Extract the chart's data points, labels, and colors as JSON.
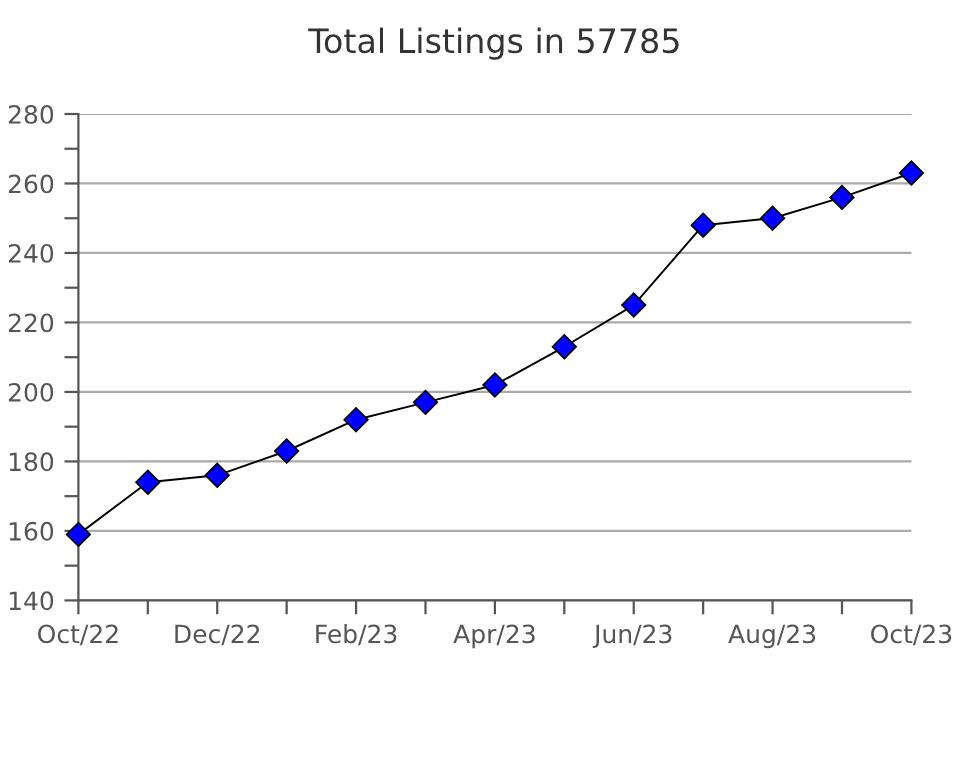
{
  "chart_data": {
    "type": "line",
    "title": "Total Listings in 57785",
    "categories": [
      "Oct/22",
      null,
      "Dec/22",
      null,
      "Feb/23",
      null,
      "Apr/23",
      null,
      "Jun/23",
      null,
      "Aug/23",
      null,
      "Oct/23"
    ],
    "series": [
      {
        "color": "#0000ff",
        "values": [
          159,
          174,
          176,
          183,
          192,
          197,
          202,
          213,
          225,
          248,
          250,
          256,
          263
        ]
      }
    ],
    "ylim": [
      140,
      280
    ],
    "yticks": [
      140,
      {
        "value": 150,
        "label": null
      },
      160,
      {
        "value": 170,
        "label": null
      },
      180,
      {
        "value": 190,
        "label": null
      },
      200,
      {
        "value": 210,
        "label": null
      },
      220,
      {
        "value": 230,
        "label": null
      },
      240,
      {
        "value": 250,
        "label": null
      },
      260,
      {
        "value": 270,
        "label": null
      },
      280
    ],
    "grid": "y",
    "marker": "diamond",
    "line_style": "solid"
  }
}
